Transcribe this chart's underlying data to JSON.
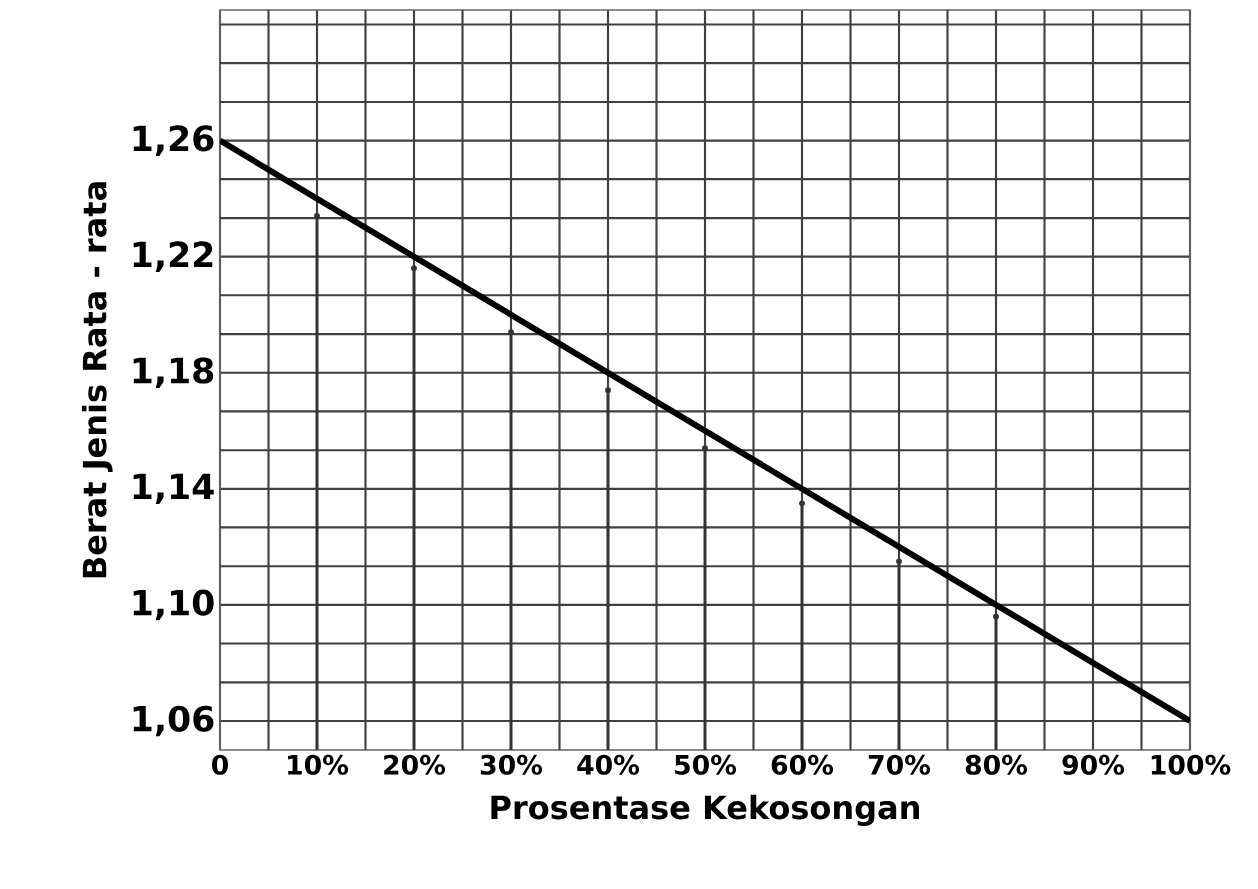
{
  "chart_data": {
    "type": "line",
    "xlabel": "Prosentase Kekosongan",
    "ylabel": "Berat Jenis Rata - rata",
    "xlim": [
      0,
      100
    ],
    "ylim": [
      1.05,
      1.305
    ],
    "xticks": [
      {
        "value": 0,
        "label": "0"
      },
      {
        "value": 5,
        "label": null
      },
      {
        "value": 10,
        "label": "10%"
      },
      {
        "value": 15,
        "label": null
      },
      {
        "value": 20,
        "label": "20%"
      },
      {
        "value": 25,
        "label": null
      },
      {
        "value": 30,
        "label": "30%"
      },
      {
        "value": 35,
        "label": null
      },
      {
        "value": 40,
        "label": "40%"
      },
      {
        "value": 45,
        "label": null
      },
      {
        "value": 50,
        "label": "50%"
      },
      {
        "value": 55,
        "label": null
      },
      {
        "value": 60,
        "label": "60%"
      },
      {
        "value": 65,
        "label": null
      },
      {
        "value": 70,
        "label": "70%"
      },
      {
        "value": 75,
        "label": null
      },
      {
        "value": 80,
        "label": "80%"
      },
      {
        "value": 85,
        "label": null
      },
      {
        "value": 90,
        "label": "90%"
      },
      {
        "value": 95,
        "label": null
      },
      {
        "value": 100,
        "label": "100%"
      }
    ],
    "yticks": [
      {
        "value": 1.06,
        "label": "1,06"
      },
      {
        "value": 1.0733,
        "label": null
      },
      {
        "value": 1.0867,
        "label": null
      },
      {
        "value": 1.1,
        "label": "1,10"
      },
      {
        "value": 1.1133,
        "label": null
      },
      {
        "value": 1.1267,
        "label": null
      },
      {
        "value": 1.14,
        "label": "1,14"
      },
      {
        "value": 1.1533,
        "label": null
      },
      {
        "value": 1.1667,
        "label": null
      },
      {
        "value": 1.18,
        "label": "1,18"
      },
      {
        "value": 1.1933,
        "label": null
      },
      {
        "value": 1.2067,
        "label": null
      },
      {
        "value": 1.22,
        "label": "1,22"
      },
      {
        "value": 1.2333,
        "label": null
      },
      {
        "value": 1.2467,
        "label": null
      },
      {
        "value": 1.26,
        "label": "1,26"
      },
      {
        "value": 1.2733,
        "label": null
      },
      {
        "value": 1.2867,
        "label": null
      },
      {
        "value": 1.3,
        "label": null
      }
    ],
    "grid": true,
    "marker": "none",
    "line_style": "solid",
    "series": [
      {
        "color": "#000000",
        "x": [
          0,
          100
        ],
        "values": [
          1.26,
          1.06
        ]
      },
      {
        "type": "lollipop",
        "marker": "circle",
        "color": "#333333",
        "x": [
          10,
          20,
          30,
          40,
          50,
          60,
          70,
          80
        ],
        "values": [
          1.234,
          1.216,
          1.194,
          1.174,
          1.154,
          1.135,
          1.115,
          1.096
        ]
      }
    ]
  }
}
